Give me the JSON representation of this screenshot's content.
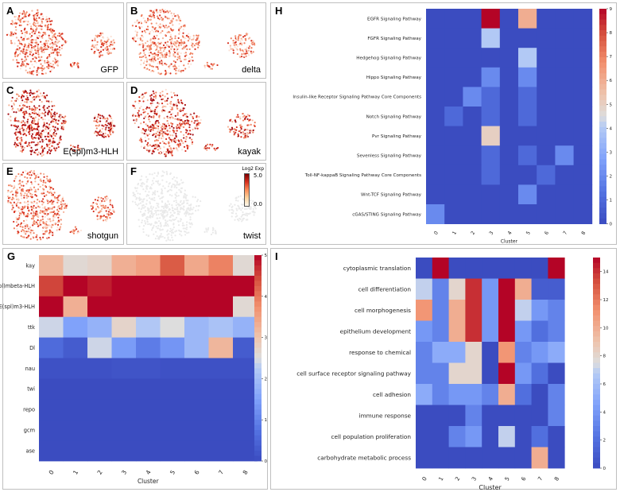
{
  "umap_panels": [
    {
      "letter": "A",
      "gene": "GFP",
      "intensity": 0.55
    },
    {
      "letter": "B",
      "gene": "delta",
      "intensity": 0.45
    },
    {
      "letter": "C",
      "gene": "E(spl)m3-HLH",
      "intensity": 0.9
    },
    {
      "letter": "D",
      "gene": "kayak",
      "intensity": 0.75
    },
    {
      "letter": "E",
      "gene": "shotgun",
      "intensity": 0.5
    },
    {
      "letter": "F",
      "gene": "twist",
      "intensity": 0.0
    }
  ],
  "umap_colorbar": {
    "title": "Log2 Exp",
    "max_label": "5.0",
    "min_label": "0.0"
  },
  "colors": {
    "low": "#3b4cc0",
    "mid": "#dddddd",
    "high": "#b40426",
    "umap_high": "#7f0000",
    "umap_low": "#eeeeee"
  },
  "chart_data": [
    {
      "panel": "H",
      "type": "heatmap",
      "xlabel": "Cluster",
      "categories": [
        "0",
        "1",
        "2",
        "3",
        "4",
        "5",
        "6",
        "7",
        "8"
      ],
      "rows": [
        "EGFR Signaling Pathway",
        "FGFR Signaling Pathway",
        "Hedgehog Signaling Pathway",
        "Hippo Signaling Pathway",
        "Insulin-like Receptor Signaling Pathway Core Components",
        "Notch Signaling Pathway",
        "Pvr Signaling Pathway",
        "Sevenless Signaling Pathway",
        "Toll-NF-kappaB Signaling Pathway Core Components",
        "Wnt-TCF Signaling Pathway",
        "cGAS/STING Signaling Pathway"
      ],
      "values": [
        [
          0,
          0,
          0,
          9,
          0,
          6,
          0,
          0,
          0
        ],
        [
          0,
          0,
          0,
          4,
          0,
          0,
          0,
          0,
          0
        ],
        [
          0,
          0,
          0,
          0,
          0,
          4,
          0,
          0,
          0
        ],
        [
          0,
          0,
          0,
          2,
          0,
          2,
          0,
          0,
          0
        ],
        [
          0,
          0,
          2,
          1,
          0,
          1,
          0,
          0,
          0
        ],
        [
          0,
          1,
          0,
          1,
          0,
          1,
          0,
          0,
          0
        ],
        [
          0,
          0,
          0,
          5,
          0,
          0,
          0,
          0,
          0
        ],
        [
          0,
          0,
          0,
          1,
          0,
          1,
          0,
          2,
          0
        ],
        [
          0,
          0,
          0,
          1,
          0,
          0,
          1,
          0,
          0
        ],
        [
          0,
          0,
          0,
          0,
          0,
          2,
          0,
          0,
          0
        ],
        [
          2,
          0,
          0,
          0,
          0,
          0,
          0,
          0,
          0
        ]
      ],
      "vmin": 0,
      "vmax": 9,
      "colorbar_ticks": [
        "0",
        "1",
        "2",
        "3",
        "4",
        "5",
        "6",
        "7",
        "8",
        "9"
      ]
    },
    {
      "panel": "G",
      "type": "heatmap",
      "xlabel": "Cluster",
      "categories": [
        "0",
        "1",
        "2",
        "3",
        "4",
        "5",
        "6",
        "7",
        "8"
      ],
      "rows": [
        "kay",
        "E(spl)mbeta-HLH",
        "E(spl)m3-HLH",
        "ttk",
        "Dl",
        "nau",
        "twi",
        "repo",
        "gcm",
        "ase"
      ],
      "values": [
        [
          3.2,
          2.6,
          2.7,
          3.3,
          3.5,
          4.3,
          3.4,
          3.9,
          2.6
        ],
        [
          4.5,
          5.0,
          4.8,
          5.0,
          5.0,
          5.0,
          5.0,
          5.0,
          5.0
        ],
        [
          5.0,
          3.3,
          5.0,
          5.0,
          5.0,
          5.0,
          5.0,
          5.0,
          2.6
        ],
        [
          2.4,
          1.5,
          1.8,
          2.7,
          2.2,
          2.5,
          1.9,
          2.1,
          1.8
        ],
        [
          0.6,
          0.3,
          2.4,
          1.4,
          0.9,
          1.3,
          1.9,
          3.2,
          0.3
        ],
        [
          0.1,
          0.1,
          0.1,
          0.15,
          0.15,
          0.1,
          0.1,
          0.1,
          0.1
        ],
        [
          0,
          0,
          0,
          0,
          0,
          0,
          0,
          0,
          0
        ],
        [
          0,
          0,
          0,
          0,
          0,
          0,
          0,
          0,
          0
        ],
        [
          0,
          0,
          0,
          0,
          0,
          0,
          0,
          0,
          0
        ],
        [
          0,
          0,
          0,
          0,
          0,
          0,
          0,
          0,
          0
        ]
      ],
      "vmin": 0,
      "vmax": 5,
      "colorbar_ticks": [
        "0",
        "1",
        "2",
        "3",
        "4",
        "5"
      ]
    },
    {
      "panel": "I",
      "type": "heatmap",
      "xlabel": "Cluster",
      "categories": [
        "0",
        "1",
        "2",
        "3",
        "4",
        "5",
        "6",
        "7",
        "8"
      ],
      "rows": [
        "cytoplasmic translation",
        "cell differentiation",
        "cell morphogenesis",
        "epithelium development",
        "response to chemical",
        "cell surface receptor signaling pathway",
        "cell adhesion",
        "immune response",
        "cell population proliferation",
        "carbohydrate metabolic process"
      ],
      "values": [
        [
          0,
          15,
          0,
          0,
          0,
          0,
          0,
          0,
          15
        ],
        [
          7,
          3,
          8,
          14,
          4,
          15,
          10,
          1,
          1
        ],
        [
          11,
          3,
          10,
          14,
          4,
          15,
          7,
          4,
          3
        ],
        [
          4,
          3,
          10,
          14,
          4,
          15,
          4,
          2,
          3
        ],
        [
          3,
          5,
          5,
          8,
          0,
          11,
          3,
          4,
          5
        ],
        [
          3,
          3,
          8,
          8,
          0,
          15,
          4,
          2,
          0
        ],
        [
          5,
          3,
          4,
          4,
          3,
          10,
          2,
          0,
          3
        ],
        [
          0,
          0,
          0,
          3,
          0,
          0,
          0,
          0,
          3
        ],
        [
          0,
          0,
          3,
          4,
          0,
          7,
          0,
          2,
          0
        ],
        [
          0,
          0,
          0,
          0,
          0,
          0,
          0,
          10,
          0
        ]
      ],
      "vmin": 0,
      "vmax": 15,
      "colorbar_ticks": [
        "0",
        "2",
        "4",
        "6",
        "8",
        "10",
        "12",
        "14"
      ]
    }
  ]
}
